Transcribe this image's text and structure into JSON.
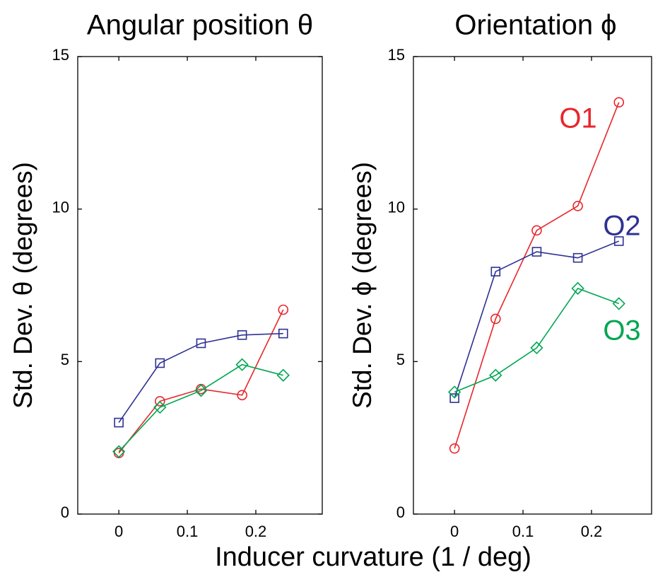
{
  "chart_data": [
    {
      "type": "line",
      "title": "Angular position θ",
      "ylabel": "Std. Dev. θ (degrees)",
      "x": [
        0,
        0.06,
        0.12,
        0.18,
        0.24
      ],
      "series": [
        {
          "name": null,
          "color": "#e8262b",
          "marker": "o",
          "values": [
            2.0,
            3.7,
            4.1,
            3.9,
            6.7
          ]
        },
        {
          "name": null,
          "color": "#2e3192",
          "marker": "s",
          "values": [
            3.0,
            4.95,
            5.6,
            5.87,
            5.92
          ]
        },
        {
          "name": null,
          "color": "#00a651",
          "marker": "d",
          "values": [
            2.05,
            3.5,
            4.05,
            4.9,
            4.55
          ]
        }
      ],
      "xlim": [
        -0.06,
        0.297
      ],
      "ylim": [
        0,
        15
      ],
      "xticks": [
        0,
        0.1,
        0.2
      ],
      "yticks": [
        0,
        5,
        10,
        15
      ],
      "grid": false
    },
    {
      "type": "line",
      "title": "Orientation ϕ",
      "ylabel": "Std. Dev. ϕ (degrees)",
      "x": [
        0,
        0.06,
        0.12,
        0.18,
        0.24
      ],
      "series": [
        {
          "name": "O1",
          "color": "#e8262b",
          "marker": "o",
          "values": [
            2.15,
            6.4,
            9.3,
            10.1,
            13.5
          ]
        },
        {
          "name": "O2",
          "color": "#2e3192",
          "marker": "s",
          "values": [
            3.8,
            7.95,
            8.6,
            8.4,
            8.95
          ]
        },
        {
          "name": "O3",
          "color": "#00a651",
          "marker": "d",
          "values": [
            4.0,
            4.55,
            5.45,
            7.4,
            6.9
          ]
        }
      ],
      "xlim": [
        -0.06,
        0.297
      ],
      "ylim": [
        0,
        15
      ],
      "xticks": [
        0,
        0.1,
        0.2
      ],
      "yticks": [
        0,
        5,
        10,
        15
      ],
      "grid": false
    }
  ],
  "xlabel": "Inducer curvature (1 / deg)"
}
